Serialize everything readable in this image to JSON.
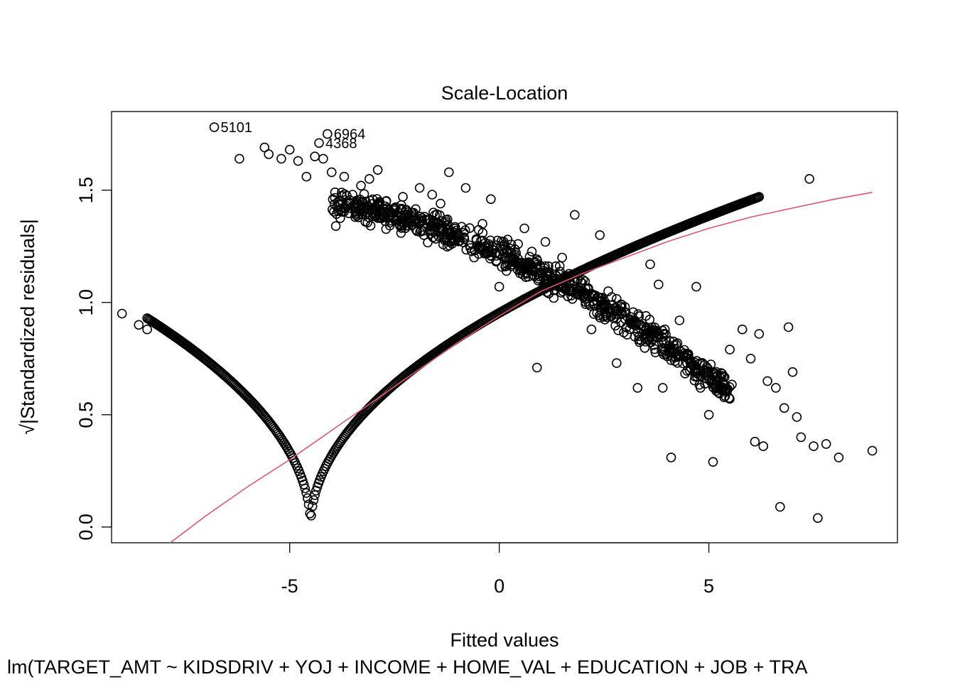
{
  "chart_data": {
    "type": "scatter",
    "title": "Scale-Location",
    "xlabel": "Fitted values",
    "ylabel_sqrt": "√",
    "ylabel": "|Standardized residuals|",
    "subtitle": "lm(TARGET_AMT ~ KIDSDRIV + YOJ + INCOME + HOME_VAL + EDUCATION + JOB + TRA",
    "xlim": [
      -9.25,
      9.5
    ],
    "ylim": [
      -0.07,
      1.85
    ],
    "x_ticks": [
      -5,
      0,
      5
    ],
    "x_tick_labels": [
      "-5",
      "0",
      "5"
    ],
    "y_ticks": [
      0.0,
      0.5,
      1.0,
      1.5
    ],
    "y_tick_labels": [
      "0.0",
      "0.5",
      "1.0",
      "1.5"
    ],
    "smoother_color": "#DF536B",
    "point_color": "#000000",
    "vertex_x": -4.5,
    "smoother": {
      "x": [
        -7.85,
        -7.0,
        -6.0,
        -5.0,
        -4.0,
        -3.0,
        -2.0,
        -1.0,
        0.0,
        1.0,
        2.0,
        3.0,
        4.0,
        5.0,
        6.0,
        7.0,
        8.0,
        8.9
      ],
      "y": [
        -0.07,
        0.05,
        0.18,
        0.3,
        0.43,
        0.56,
        0.69,
        0.82,
        0.94,
        1.05,
        1.13,
        1.2,
        1.27,
        1.33,
        1.38,
        1.42,
        1.46,
        1.49
      ]
    },
    "labeled_points": [
      {
        "label": "5101",
        "x": -6.8,
        "y": 1.78
      },
      {
        "label": "6964",
        "x": -4.1,
        "y": 1.75
      },
      {
        "label": "4368",
        "x": -4.3,
        "y": 1.71
      }
    ],
    "points": [
      {
        "x": -9.0,
        "y": 0.95
      },
      {
        "x": -8.6,
        "y": 0.9
      },
      {
        "x": -8.4,
        "y": 0.88
      },
      {
        "x": -6.2,
        "y": 1.64
      },
      {
        "x": -5.6,
        "y": 1.69
      },
      {
        "x": -5.5,
        "y": 1.66
      },
      {
        "x": -5.2,
        "y": 1.64
      },
      {
        "x": -5.0,
        "y": 1.68
      },
      {
        "x": -4.8,
        "y": 1.63
      },
      {
        "x": -4.6,
        "y": 1.56
      },
      {
        "x": -4.4,
        "y": 1.65
      },
      {
        "x": -4.2,
        "y": 1.64
      },
      {
        "x": -4.0,
        "y": 1.58
      },
      {
        "x": -3.9,
        "y": 1.34
      },
      {
        "x": -3.7,
        "y": 1.56
      },
      {
        "x": -3.5,
        "y": 1.48
      },
      {
        "x": -3.3,
        "y": 1.52
      },
      {
        "x": -3.1,
        "y": 1.55
      },
      {
        "x": -2.9,
        "y": 1.59
      },
      {
        "x": -2.7,
        "y": 1.45
      },
      {
        "x": -2.5,
        "y": 1.42
      },
      {
        "x": -2.3,
        "y": 1.47
      },
      {
        "x": -2.1,
        "y": 1.4
      },
      {
        "x": -1.9,
        "y": 1.51
      },
      {
        "x": -1.8,
        "y": 1.3
      },
      {
        "x": -1.6,
        "y": 1.48
      },
      {
        "x": -1.4,
        "y": 1.44
      },
      {
        "x": -1.2,
        "y": 1.58
      },
      {
        "x": -1.0,
        "y": 1.3
      },
      {
        "x": -0.8,
        "y": 1.51
      },
      {
        "x": -0.6,
        "y": 1.2
      },
      {
        "x": -0.4,
        "y": 1.35
      },
      {
        "x": -0.2,
        "y": 1.46
      },
      {
        "x": 0.0,
        "y": 1.07
      },
      {
        "x": 0.2,
        "y": 1.28
      },
      {
        "x": 0.4,
        "y": 1.22
      },
      {
        "x": 0.6,
        "y": 1.33
      },
      {
        "x": 0.8,
        "y": 1.14
      },
      {
        "x": 0.9,
        "y": 0.71
      },
      {
        "x": 1.1,
        "y": 1.27
      },
      {
        "x": 1.3,
        "y": 1.02
      },
      {
        "x": 1.5,
        "y": 1.2
      },
      {
        "x": 1.8,
        "y": 1.39
      },
      {
        "x": 2.0,
        "y": 1.1
      },
      {
        "x": 2.2,
        "y": 0.88
      },
      {
        "x": 2.4,
        "y": 1.3
      },
      {
        "x": 2.6,
        "y": 1.05
      },
      {
        "x": 2.8,
        "y": 0.73
      },
      {
        "x": 3.0,
        "y": 0.98
      },
      {
        "x": 3.3,
        "y": 0.62
      },
      {
        "x": 3.5,
        "y": 0.94
      },
      {
        "x": 3.6,
        "y": 1.17
      },
      {
        "x": 3.8,
        "y": 1.08
      },
      {
        "x": 3.9,
        "y": 0.62
      },
      {
        "x": 4.1,
        "y": 0.31
      },
      {
        "x": 4.3,
        "y": 0.92
      },
      {
        "x": 4.5,
        "y": 0.77
      },
      {
        "x": 4.7,
        "y": 1.07
      },
      {
        "x": 4.8,
        "y": 0.62
      },
      {
        "x": 5.0,
        "y": 0.5
      },
      {
        "x": 5.1,
        "y": 0.29
      },
      {
        "x": 5.2,
        "y": 0.67
      },
      {
        "x": 5.5,
        "y": 0.79
      },
      {
        "x": 5.8,
        "y": 0.88
      },
      {
        "x": 6.0,
        "y": 0.75
      },
      {
        "x": 6.1,
        "y": 0.38
      },
      {
        "x": 6.2,
        "y": 0.86
      },
      {
        "x": 6.3,
        "y": 0.36
      },
      {
        "x": 6.4,
        "y": 0.65
      },
      {
        "x": 6.6,
        "y": 0.62
      },
      {
        "x": 6.7,
        "y": 0.09
      },
      {
        "x": 6.8,
        "y": 0.53
      },
      {
        "x": 6.9,
        "y": 0.89
      },
      {
        "x": 7.0,
        "y": 0.69
      },
      {
        "x": 7.1,
        "y": 0.49
      },
      {
        "x": 7.2,
        "y": 0.4
      },
      {
        "x": 7.4,
        "y": 1.55
      },
      {
        "x": 7.5,
        "y": 0.36
      },
      {
        "x": 7.6,
        "y": 0.04
      },
      {
        "x": 7.8,
        "y": 0.37
      },
      {
        "x": 8.1,
        "y": 0.31
      },
      {
        "x": 8.9,
        "y": 0.34
      }
    ]
  }
}
